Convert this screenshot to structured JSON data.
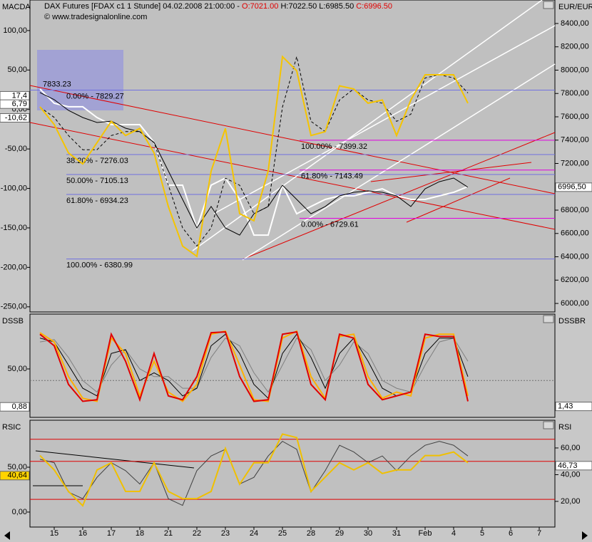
{
  "chart_data": [
    {
      "type": "line",
      "title": "MACDA",
      "header": {
        "instrument": "DAX Futures [FDAX c1  1 Stunde] 04.02.2008 21:00:00 -",
        "open": "O:7021.00",
        "high_low": "H:7022.50 L:6985.50",
        "close": "C:6996.50"
      },
      "source": "© www.tradesignalonline.com",
      "y2_label": "EUR/EUR",
      "xlim": [
        -0.85,
        17.55
      ],
      "x": [
        -0.5,
        0,
        0.5,
        1,
        1.5,
        2,
        2.5,
        3,
        3.5,
        4,
        4.5,
        5,
        5.5,
        6,
        6.5,
        7,
        7.5,
        8,
        8.5,
        9,
        9.5,
        10,
        10.5,
        11,
        11.5,
        12,
        12.5,
        13,
        13.5,
        14,
        14.5
      ],
      "ylim": [
        -256.5,
        136
      ],
      "yticks": [
        {
          "value": 100,
          "label": "100,00"
        },
        {
          "value": 50,
          "label": "50,00"
        },
        {
          "value": 0,
          "label": "0,00"
        },
        {
          "value": -50,
          "label": "-50,00"
        },
        {
          "value": -100,
          "label": "-100,00"
        },
        {
          "value": -150,
          "label": "-150,00"
        },
        {
          "value": -200,
          "label": "-200,00"
        },
        {
          "value": -250,
          "label": "-250,00"
        }
      ],
      "y2lim": [
        5927,
        8583
      ],
      "y2ticks": [
        {
          "value": 6000,
          "label": "6000,00"
        },
        {
          "value": 6200,
          "label": "6200,00"
        },
        {
          "value": 6400,
          "label": "6400,00"
        },
        {
          "value": 6600,
          "label": "6600,00"
        },
        {
          "value": 6800,
          "label": "6800,00"
        },
        {
          "value": 7000,
          "label": "7000,00"
        },
        {
          "value": 7200,
          "label": "7200,00"
        },
        {
          "value": 7400,
          "label": "7400,00"
        },
        {
          "value": 7600,
          "label": "7600,00"
        },
        {
          "value": 7800,
          "label": "7800,00"
        },
        {
          "value": 8000,
          "label": "8000,00"
        },
        {
          "value": 8200,
          "label": "8200,00"
        },
        {
          "value": 8400,
          "label": "8400,00"
        }
      ],
      "series": [
        {
          "color": "#ffffff",
          "axis": "y2",
          "values": [
            7838,
            7716,
            7686,
            7686,
            7594,
            7533,
            7533,
            7533,
            7380,
            7014,
            7014,
            6647,
            7014,
            7075,
            6892,
            6586,
            6586,
            7014,
            6769,
            6831,
            6892,
            6922,
            6922,
            6953,
            6983,
            6922,
            6892,
            6892,
            6922,
            6953,
            7002
          ]
        },
        {
          "color": "#000000",
          "axis": "y2",
          "values": [
            7808,
            7747,
            7655,
            7594,
            7551,
            7563,
            7502,
            7472,
            7380,
            7136,
            6892,
            6647,
            6831,
            6647,
            6586,
            6769,
            6831,
            7014,
            6892,
            6769,
            6831,
            6922,
            6953,
            6965,
            6953,
            6922,
            6831,
            6983,
            7044,
            7075,
            6996.5
          ]
        },
        {
          "color": "#000000",
          "style": "dashed",
          "values": [
            3,
            -10,
            -33,
            -51,
            -51,
            -33,
            -28,
            -28,
            -42,
            -96,
            -150,
            -173,
            -150,
            -87,
            -96,
            -132,
            -123,
            3,
            67,
            -15,
            -28,
            12,
            26,
            12,
            8,
            -15,
            -6,
            40,
            44,
            40,
            21
          ]
        },
        {
          "color": "#f5c400",
          "values": [
            3.4,
            -19,
            -55,
            -69,
            -42,
            -15,
            -33,
            -24,
            -55,
            -123,
            -173,
            -186,
            -78,
            -24,
            -132,
            -141,
            -78,
            67,
            49,
            -33,
            -28,
            30,
            26,
            8,
            12,
            -33,
            12,
            44,
            44,
            44,
            8
          ]
        }
      ],
      "fib_levels": [
        {
          "label": "0.00% - 7829.27",
          "value": 7829.27,
          "color": "#7070e0"
        },
        {
          "label": "38.20% - 7276.03",
          "value": 7276.03,
          "color": "#7070e0"
        },
        {
          "label": "50.00% - 7105.13",
          "value": 7105.13,
          "color": "#7070e0"
        },
        {
          "label": "61.80% - 6934.23",
          "value": 6934.23,
          "color": "#7070e0"
        },
        {
          "label": "100.00% - 6380.99",
          "value": 6380.99,
          "color": "#7070e0"
        },
        {
          "label": "100.00% - 7399.32",
          "value": 7399.32,
          "color": "#e000e0"
        },
        {
          "label": "61.80% - 7143.49",
          "value": 7143.49,
          "color": "#e000e0"
        },
        {
          "label": "0.00% - 6729.61",
          "value": 6729.61,
          "color": "#e000e0"
        }
      ],
      "annotations": [
        {
          "label": "7833.23",
          "value": 7833.23,
          "color": "#cc0000"
        }
      ],
      "badges": [
        {
          "label": "17,4",
          "value": 17.4
        },
        {
          "label": "6,79",
          "value": 6.79
        },
        {
          "label": "-10,62",
          "value": -10.62
        }
      ],
      "y2_badges": [
        {
          "label": "6996,50",
          "value": 6996.5
        }
      ]
    },
    {
      "type": "line",
      "title": "DSSB",
      "y2_label": "DSSBR",
      "xlim": [
        -0.85,
        17.55
      ],
      "x": [
        -0.5,
        0,
        0.5,
        1,
        1.5,
        2,
        2.5,
        3,
        3.5,
        4,
        4.5,
        5,
        5.5,
        6,
        6.5,
        7,
        7.5,
        8,
        8.5,
        9,
        9.5,
        10,
        10.5,
        11,
        11.5,
        12,
        12.5,
        13,
        13.5,
        14,
        14.5
      ],
      "ylim": [
        -10,
        110
      ],
      "yticks": [
        {
          "value": 50,
          "label": "50,00"
        }
      ],
      "levels": [
        35
      ],
      "series": [
        {
          "color": "#808080",
          "values": [
            85,
            88,
            65,
            35,
            20,
            55,
            75,
            50,
            40,
            40,
            25,
            25,
            65,
            90,
            80,
            45,
            20,
            55,
            90,
            75,
            35,
            55,
            85,
            70,
            35,
            25,
            20,
            55,
            85,
            90,
            60
          ]
        },
        {
          "color": "#000000",
          "values": [
            90,
            85,
            55,
            25,
            15,
            70,
            75,
            35,
            45,
            35,
            15,
            25,
            80,
            95,
            70,
            30,
            12,
            70,
            95,
            65,
            25,
            70,
            90,
            60,
            25,
            15,
            20,
            70,
            90,
            90,
            40
          ]
        },
        {
          "color": "#ffb000",
          "values": [
            97,
            85,
            40,
            12,
            8,
            90,
            70,
            15,
            60,
            20,
            8,
            30,
            95,
            99,
            55,
            10,
            8,
            90,
            99,
            40,
            12,
            92,
            95,
            40,
            12,
            20,
            15,
            90,
            95,
            95,
            15
          ]
        },
        {
          "color": "#e00000",
          "values": [
            95,
            80,
            30,
            8,
            10,
            95,
            60,
            10,
            70,
            15,
            10,
            40,
            97,
            98,
            40,
            8,
            10,
            95,
            98,
            30,
            10,
            95,
            90,
            30,
            10,
            15,
            20,
            95,
            92,
            92,
            8
          ]
        }
      ],
      "badges": [
        {
          "label": "0,88",
          "value": 0.88
        }
      ],
      "y2_badges": [
        {
          "label": "1,43",
          "value": 1.43
        }
      ]
    },
    {
      "type": "line",
      "title": "RSIC",
      "y2_label": "RSI",
      "xlim": [
        -0.85,
        17.55
      ],
      "xticks": [
        {
          "value": 0,
          "label": "15"
        },
        {
          "value": 1,
          "label": "16"
        },
        {
          "value": 2,
          "label": "17"
        },
        {
          "value": 3,
          "label": "18"
        },
        {
          "value": 4,
          "label": "21"
        },
        {
          "value": 5,
          "label": "22"
        },
        {
          "value": 6,
          "label": "23"
        },
        {
          "value": 7,
          "label": "24"
        },
        {
          "value": 8,
          "label": "25"
        },
        {
          "value": 9,
          "label": "28"
        },
        {
          "value": 10,
          "label": "29"
        },
        {
          "value": 11,
          "label": "30"
        },
        {
          "value": 12,
          "label": "31"
        },
        {
          "value": 13,
          "label": "Feb"
        },
        {
          "value": 14,
          "label": "4"
        },
        {
          "value": 15,
          "label": "5"
        },
        {
          "value": 16,
          "label": "6"
        },
        {
          "value": 17,
          "label": "7"
        }
      ],
      "x": [
        -0.5,
        0,
        0.5,
        1,
        1.5,
        2,
        2.5,
        3,
        3.5,
        4,
        4.5,
        5,
        5.5,
        6,
        6.5,
        7,
        7.5,
        8,
        8.5,
        9,
        9.5,
        10,
        10.5,
        11,
        11.5,
        12,
        12.5,
        13,
        13.5,
        14,
        14.5
      ],
      "ylim": [
        -16.7,
        100.8
      ],
      "yticks": [
        {
          "value": 50,
          "label": "50,00"
        },
        {
          "value": 0,
          "label": "0,00"
        }
      ],
      "y2lim": [
        0.8,
        79.7
      ],
      "y2ticks": [
        {
          "value": 60,
          "label": "60,00"
        },
        {
          "value": 40,
          "label": "40,00"
        },
        {
          "value": 20,
          "label": "20,00"
        }
      ],
      "levels_y2": [
        66.5,
        50,
        21.5
      ],
      "series": [
        {
          "color": "#404040",
          "axis": "y2",
          "values": [
            51.5,
            49,
            27,
            22,
            38,
            49,
            43,
            33,
            49,
            22,
            17,
            43,
            54,
            59,
            33,
            38,
            54,
            65,
            59,
            27,
            43,
            62,
            57,
            49,
            54,
            43,
            54,
            62,
            65,
            62,
            54
          ]
        },
        {
          "color": "#f0c000",
          "values": [
            63,
            47,
            23,
            7,
            47,
            55,
            23,
            23,
            55,
            23,
            15,
            15,
            23,
            71,
            31,
            55,
            55,
            87,
            83,
            23,
            39,
            55,
            47,
            55,
            43,
            47,
            47,
            63,
            63,
            67,
            55
          ]
        }
      ],
      "badges": [
        {
          "label": "40,64",
          "value": 40.64,
          "color": "#ffd400"
        }
      ],
      "y2_badges": [
        {
          "label": "46,73",
          "value": 46.73
        }
      ]
    }
  ]
}
